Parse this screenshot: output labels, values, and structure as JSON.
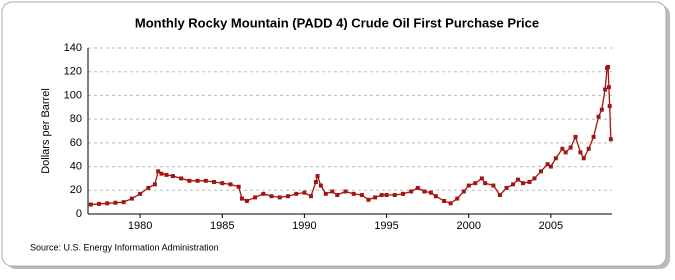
{
  "chart_data": {
    "type": "line",
    "title": "Monthly Rocky Mountain (PADD 4) Crude Oil First Purchase Price",
    "y_label": "Dollars per Barrel",
    "source": "Source: U.S. Energy Information Administration",
    "color": "#a31515",
    "x": [
      1977.0,
      1977.5,
      1978.0,
      1978.5,
      1979.0,
      1979.5,
      1980.0,
      1980.5,
      1980.9,
      1981.1,
      1981.3,
      1981.6,
      1982.0,
      1982.5,
      1983.0,
      1983.5,
      1984.0,
      1984.5,
      1985.0,
      1985.5,
      1986.0,
      1986.2,
      1986.5,
      1987.0,
      1987.5,
      1988.0,
      1988.5,
      1989.0,
      1989.5,
      1990.0,
      1990.4,
      1990.7,
      1990.8,
      1991.0,
      1991.3,
      1991.7,
      1992.0,
      1992.5,
      1993.0,
      1993.5,
      1993.9,
      1994.3,
      1994.7,
      1995.0,
      1995.5,
      1996.0,
      1996.5,
      1996.9,
      1997.3,
      1997.7,
      1998.0,
      1998.5,
      1998.9,
      1999.3,
      1999.7,
      2000.0,
      2000.4,
      2000.8,
      2001.0,
      2001.5,
      2001.9,
      2002.3,
      2002.7,
      2003.0,
      2003.3,
      2003.7,
      2004.0,
      2004.4,
      2004.8,
      2005.0,
      2005.3,
      2005.7,
      2005.9,
      2006.2,
      2006.5,
      2006.8,
      2007.0,
      2007.3,
      2007.6,
      2007.9,
      2008.1,
      2008.3,
      2008.42,
      2008.48,
      2008.53,
      2008.58,
      2008.65
    ],
    "values": [
      8,
      8.5,
      9,
      9.5,
      10,
      13,
      17,
      22,
      25,
      36,
      34,
      33,
      32,
      30,
      28,
      28,
      28,
      27,
      26,
      25,
      23,
      13,
      11,
      14,
      17,
      15,
      14,
      15,
      17,
      18,
      15,
      27,
      32,
      24,
      17,
      19,
      16,
      19,
      17,
      16,
      12,
      14,
      16,
      16,
      16,
      17,
      19,
      22,
      19,
      18,
      15,
      11,
      9,
      13,
      19,
      24,
      26,
      30,
      26,
      24,
      16,
      22,
      25,
      29,
      26,
      27,
      30,
      36,
      42,
      40,
      47,
      55,
      52,
      56,
      65,
      52,
      47,
      55,
      65,
      82,
      88,
      105,
      123,
      124,
      107,
      91,
      63
    ],
    "xlim": [
      1976.83,
      2008.72
    ],
    "xticks": [
      1980,
      1985,
      1990,
      1995,
      2000,
      2005
    ],
    "ylim": [
      0,
      140
    ],
    "yticks": [
      0,
      20,
      40,
      60,
      80,
      100,
      120,
      140
    ],
    "grid": true
  }
}
